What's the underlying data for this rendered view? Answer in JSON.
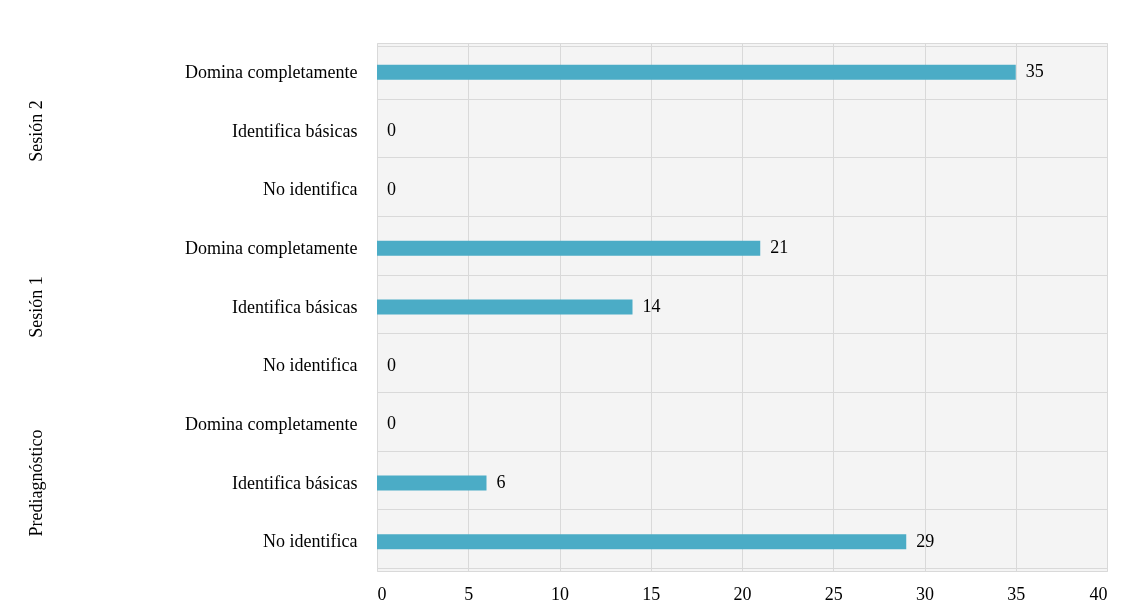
{
  "chart_data": {
    "type": "bar",
    "orientation": "horizontal",
    "categories": [
      "Domina completamente",
      "Identifica básicas",
      "No identifica",
      "Domina completamente",
      "Identifica básicas",
      "No identifica",
      "Domina completamente",
      "Identifica básicas",
      "No identifica"
    ],
    "values": [
      35,
      0,
      0,
      21,
      14,
      0,
      0,
      6,
      29
    ],
    "color": "#4bacc6",
    "annotations": [
      "Sesión 2",
      "Sesión 1",
      "Prediagnóstico"
    ],
    "xlim": [
      0,
      40
    ],
    "xticks": [
      0,
      5,
      10,
      15,
      20,
      25,
      30,
      35,
      40
    ],
    "grid": true,
    "data_labels": true
  }
}
